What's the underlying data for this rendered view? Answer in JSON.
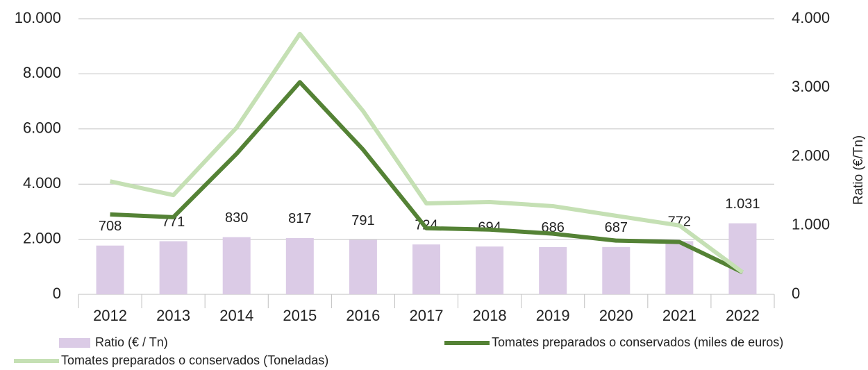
{
  "chart_data": {
    "type": "combo",
    "categories": [
      "2012",
      "2013",
      "2014",
      "2015",
      "2016",
      "2017",
      "2018",
      "2019",
      "2020",
      "2021",
      "2022"
    ],
    "series": [
      {
        "name": "Ratio (€ / Tn)",
        "type": "bar",
        "axis": "y2",
        "color": "#dbcbe6",
        "values": [
          708,
          771,
          830,
          817,
          791,
          724,
          694,
          686,
          687,
          772,
          1031
        ],
        "value_labels": [
          "708",
          "771",
          "830",
          "817",
          "791",
          "724",
          "694",
          "686",
          "687",
          "772",
          "1.031"
        ]
      },
      {
        "name": "Tomates preparados o conservados (miles de euros)",
        "type": "line",
        "color": "#548235",
        "values": [
          2900,
          2800,
          5100,
          7700,
          5250,
          2400,
          2350,
          2200,
          1950,
          1900,
          800
        ]
      },
      {
        "name": "Tomates preparados o conservados (Toneladas)",
        "type": "line",
        "color": "#c5e0b4",
        "values": [
          4100,
          3600,
          6050,
          9450,
          6650,
          3300,
          3350,
          3200,
          2850,
          2500,
          800
        ]
      }
    ],
    "ylim": [
      0,
      10000
    ],
    "yticks": [
      0,
      {
        "value": 2000,
        "label": "2.000"
      },
      {
        "value": 4000,
        "label": "4.000"
      },
      {
        "value": 6000,
        "label": "6.000"
      },
      {
        "value": 8000,
        "label": "8.000"
      },
      {
        "value": 10000,
        "label": "10.000"
      }
    ],
    "y2lim": [
      0,
      4000
    ],
    "y2ticks": [
      0,
      {
        "value": 1000,
        "label": "1.000"
      },
      {
        "value": 2000,
        "label": "2.000"
      },
      {
        "value": 3000,
        "label": "3.000"
      },
      {
        "value": 4000,
        "label": "4.000"
      }
    ],
    "y2label": "Ratio (€/Tn)",
    "grid": true,
    "legend": "bottom"
  }
}
